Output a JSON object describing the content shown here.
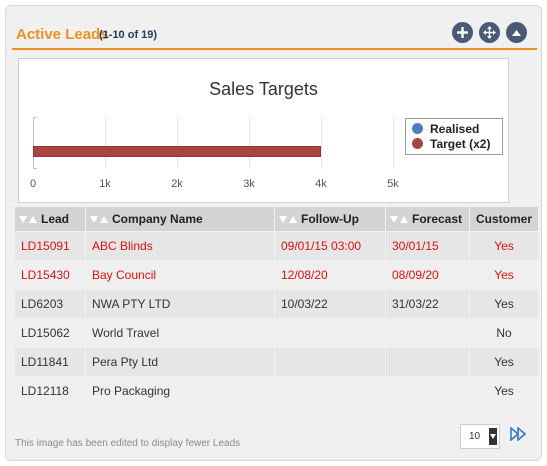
{
  "panel": {
    "title": "Active Leads",
    "count": "(1-10 of 19)",
    "buttons": [
      "add-icon",
      "move-icon",
      "collapse-icon"
    ]
  },
  "chart_data": {
    "type": "bar",
    "title": "Sales Targets",
    "orientation": "horizontal",
    "xlim": [
      0,
      5000
    ],
    "ticks": [
      "0",
      "1k",
      "2k",
      "3k",
      "4k",
      "5k"
    ],
    "series": [
      {
        "name": "Realised",
        "values": [
          0
        ],
        "color": "#4f7ec0"
      },
      {
        "name": "Target (x2)",
        "values": [
          4000
        ],
        "color": "#a94442"
      }
    ],
    "legend_position": "right",
    "grid": true
  },
  "table": {
    "headers": [
      "Lead",
      "Company Name",
      "Follow-Up",
      "Forecast",
      "Customer"
    ],
    "rows": [
      {
        "lead": "LD15091",
        "company": "ABC Blinds",
        "followup": "09/01/15 03:00",
        "forecast": "30/01/15",
        "customer": "Yes",
        "overdue": true
      },
      {
        "lead": "LD15430",
        "company": "Bay Council",
        "followup": "12/08/20",
        "forecast": "08/09/20",
        "customer": "Yes",
        "overdue": true
      },
      {
        "lead": "LD6203",
        "company": "NWA PTY LTD",
        "followup": "10/03/22",
        "forecast": "31/03/22",
        "customer": "Yes",
        "overdue": false
      },
      {
        "lead": "LD15062",
        "company": "World Travel",
        "followup": "",
        "forecast": "",
        "customer": "No",
        "overdue": false
      },
      {
        "lead": "LD11841",
        "company": "Pera Pty Ltd",
        "followup": "",
        "forecast": "",
        "customer": "Yes",
        "overdue": false
      },
      {
        "lead": "LD12118",
        "company": "Pro Packaging",
        "followup": "",
        "forecast": "",
        "customer": "Yes",
        "overdue": false
      }
    ]
  },
  "footer": {
    "note": "This image has been edited to display fewer Leads",
    "page_size": "10"
  },
  "colors": {
    "accent": "#f0901e",
    "overdue": "#dd1111",
    "button": "#4a5a74"
  }
}
